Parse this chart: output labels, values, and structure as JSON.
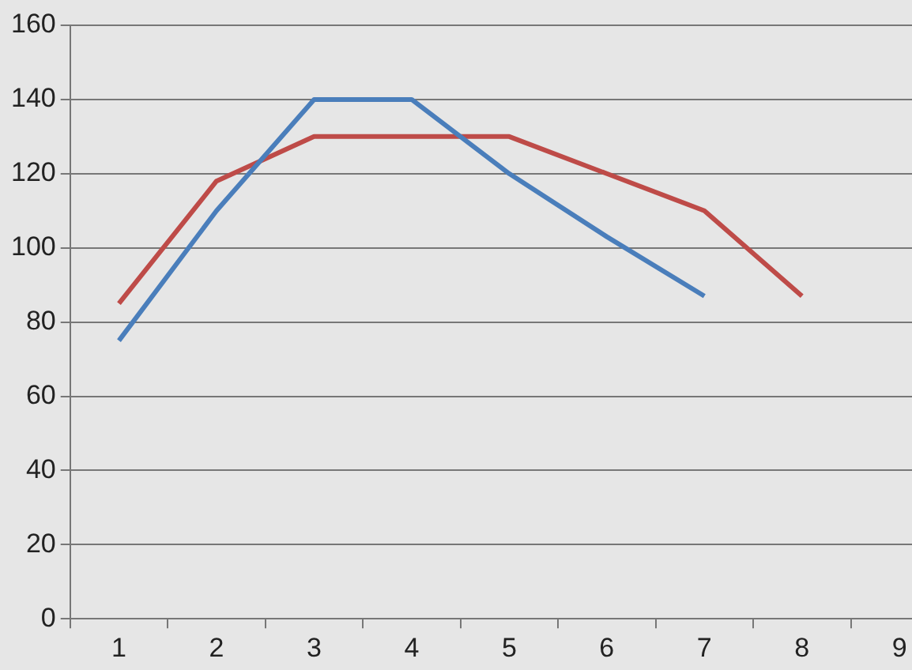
{
  "chart_data": {
    "type": "line",
    "categories": [
      "1",
      "2",
      "3",
      "4",
      "5",
      "6",
      "7",
      "8",
      "9"
    ],
    "series": [
      {
        "color": "#4a7ebb",
        "values": [
          75,
          110,
          140,
          140,
          120,
          103,
          87,
          null,
          null
        ]
      },
      {
        "color": "#be4b48",
        "values": [
          85,
          118,
          130,
          130,
          130,
          120,
          110,
          87,
          null
        ]
      }
    ],
    "ylim": [
      0,
      160
    ],
    "yticks": [
      0,
      20,
      40,
      60,
      80,
      100,
      120,
      140,
      160
    ],
    "grid": "y",
    "legend": false,
    "marker": "none"
  }
}
